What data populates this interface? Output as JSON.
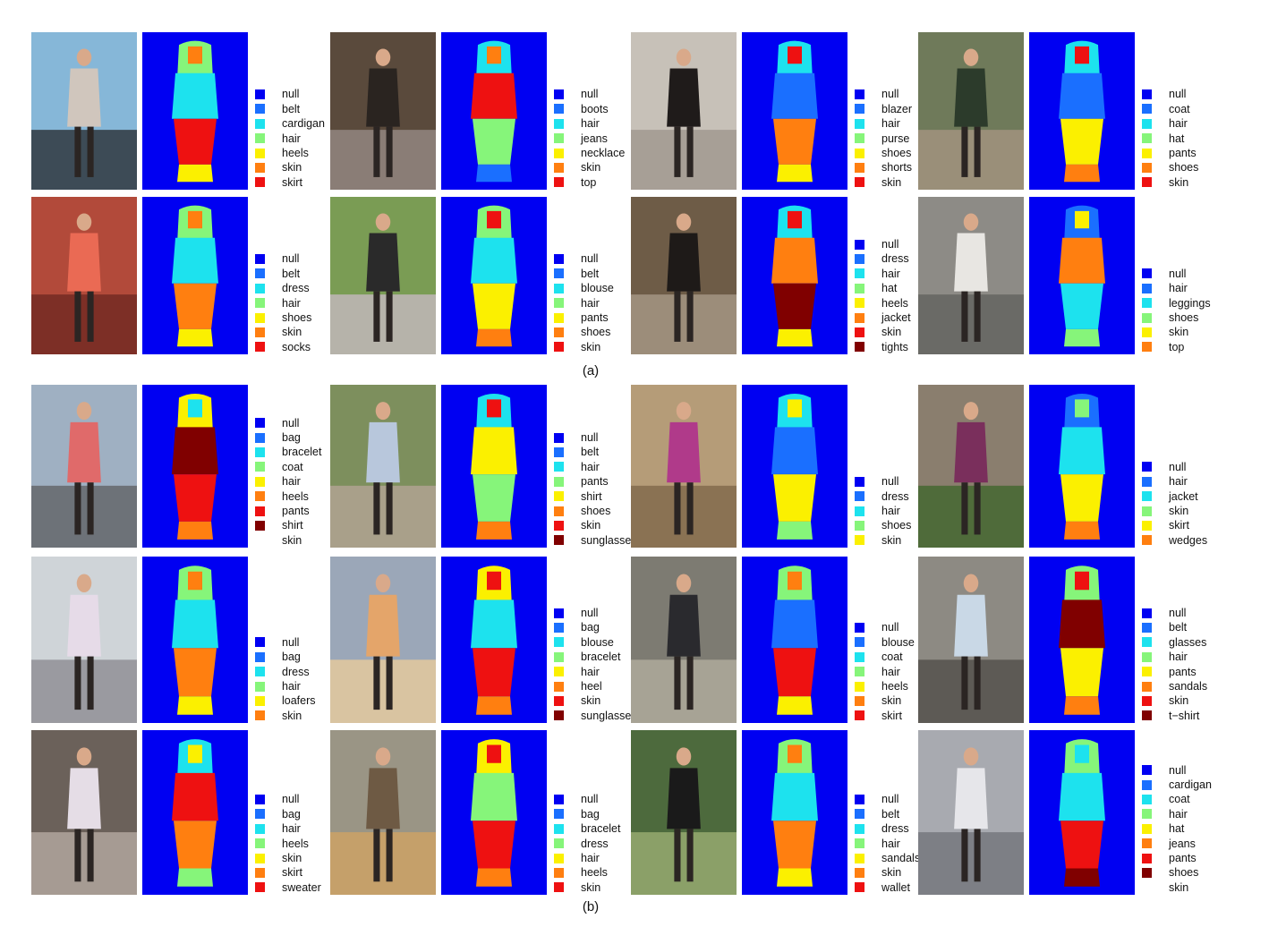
{
  "captions": {
    "a": "(a)",
    "b": "(b)"
  },
  "colors": {
    "null": "#0000f2",
    "blue": "#1a6fff",
    "cyan": "#1de2ee",
    "lightgreen": "#86f57a",
    "yellow": "#fbf000",
    "orange": "#ff7f10",
    "red": "#ee1111",
    "darkred": "#800000"
  },
  "figure": {
    "a": [
      {
        "labels": [
          "null",
          "belt",
          "cardigan",
          "hair",
          "heels",
          "skin",
          "skirt"
        ],
        "photo_palette": [
          "#86b7d8",
          "#3d4b56",
          "#d0c6bd"
        ]
      },
      {
        "labels": [
          "null",
          "boots",
          "hair",
          "jeans",
          "necklace",
          "skin",
          "top"
        ],
        "photo_palette": [
          "#5a4a3c",
          "#8a7d76",
          "#2a2420"
        ]
      },
      {
        "labels": [
          "null",
          "blazer",
          "hair",
          "purse",
          "shoes",
          "shorts",
          "skin"
        ],
        "photo_palette": [
          "#c7c1b8",
          "#a79f96",
          "#1f1b1a"
        ]
      },
      {
        "labels": [
          "null",
          "coat",
          "hair",
          "hat",
          "pants",
          "shoes",
          "skin"
        ],
        "photo_palette": [
          "#6f7a5a",
          "#9a8f79",
          "#2c3b2b"
        ]
      },
      {
        "labels": [
          "null",
          "belt",
          "dress",
          "hair",
          "shoes",
          "skin",
          "socks"
        ],
        "photo_palette": [
          "#b24a3a",
          "#7d2f26",
          "#ea6a54"
        ]
      },
      {
        "labels": [
          "null",
          "belt",
          "blouse",
          "hair",
          "pants",
          "shoes",
          "skin"
        ],
        "photo_palette": [
          "#7a9c54",
          "#b6b3aa",
          "#2a2a2a"
        ]
      },
      {
        "labels": [
          "null",
          "dress",
          "hair",
          "hat",
          "heels",
          "jacket",
          "skin",
          "tights"
        ],
        "photo_palette": [
          "#6e5c47",
          "#9c8d7a",
          "#1e1a18"
        ]
      },
      {
        "labels": [
          "null",
          "hair",
          "leggings",
          "shoes",
          "skin",
          "top"
        ],
        "photo_palette": [
          "#8d8b86",
          "#6a6a66",
          "#e8e6e2"
        ]
      }
    ],
    "b": [
      {
        "labels": [
          "null",
          "bag",
          "bracelet",
          "coat",
          "hair",
          "heels",
          "pants",
          "shirt",
          "skin"
        ],
        "photo_palette": [
          "#9fb0c2",
          "#6d7278",
          "#e06a6a"
        ]
      },
      {
        "labels": [
          "null",
          "belt",
          "hair",
          "pants",
          "shirt",
          "shoes",
          "skin",
          "sunglasses"
        ],
        "photo_palette": [
          "#7d8f5d",
          "#a9a08a",
          "#b8c7dc"
        ]
      },
      {
        "labels": [
          "null",
          "dress",
          "hair",
          "shoes",
          "skin"
        ],
        "photo_palette": [
          "#b59c78",
          "#8a7253",
          "#b03a8a"
        ]
      },
      {
        "labels": [
          "null",
          "hair",
          "jacket",
          "skin",
          "skirt",
          "wedges"
        ],
        "photo_palette": [
          "#8a7e6e",
          "#4f6b3a",
          "#7a2f5c"
        ]
      },
      {
        "labels": [
          "null",
          "bag",
          "dress",
          "hair",
          "loafers",
          "skin"
        ],
        "photo_palette": [
          "#cfd4d8",
          "#9a9aa0",
          "#e6dbe8"
        ]
      },
      {
        "labels": [
          "null",
          "bag",
          "blouse",
          "bracelet",
          "hair",
          "heel",
          "skin",
          "sunglasses"
        ],
        "photo_palette": [
          "#9ba7b8",
          "#d9c4a1",
          "#e4a56a"
        ]
      },
      {
        "labels": [
          "null",
          "blouse",
          "coat",
          "hair",
          "heels",
          "skin",
          "skirt"
        ],
        "photo_palette": [
          "#7d7b72",
          "#a7a395",
          "#2a2a2e"
        ]
      },
      {
        "labels": [
          "null",
          "belt",
          "glasses",
          "hair",
          "pants",
          "sandals",
          "skin",
          "t−shirt"
        ],
        "photo_palette": [
          "#8d8a83",
          "#5d5a55",
          "#c9d8e6"
        ]
      },
      {
        "labels": [
          "null",
          "bag",
          "hair",
          "heels",
          "skin",
          "skirt",
          "sweater"
        ],
        "photo_palette": [
          "#6b615a",
          "#a69b93",
          "#e5dde6"
        ]
      },
      {
        "labels": [
          "null",
          "bag",
          "bracelet",
          "dress",
          "hair",
          "heels",
          "skin"
        ],
        "photo_palette": [
          "#9a9585",
          "#c5a06a",
          "#6e5a44"
        ]
      },
      {
        "labels": [
          "null",
          "belt",
          "dress",
          "hair",
          "sandals",
          "skin",
          "wallet"
        ],
        "photo_palette": [
          "#4d6a3d",
          "#8ba068",
          "#1a1a1a"
        ]
      },
      {
        "labels": [
          "null",
          "cardigan",
          "coat",
          "hair",
          "hat",
          "jeans",
          "pants",
          "shoes",
          "skin"
        ],
        "photo_palette": [
          "#a8aab0",
          "#7d7f85",
          "#e6e6ea"
        ]
      }
    ]
  }
}
